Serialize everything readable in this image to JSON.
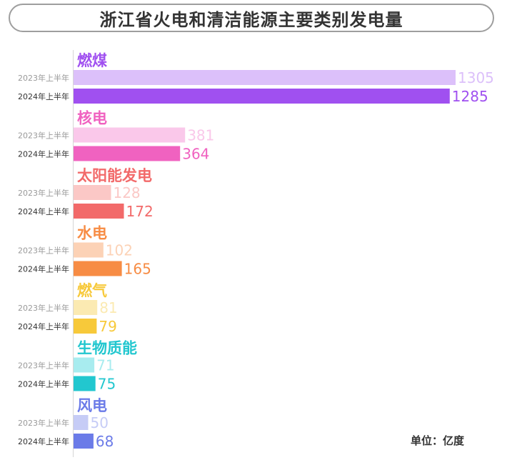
{
  "title": "浙江省火电和清洁能源主要类别发电量",
  "unit_label": "单位：亿度",
  "chart_data": {
    "type": "bar",
    "orientation": "horizontal",
    "title": "浙江省火电和清洁能源主要类别发电量",
    "unit": "亿度",
    "series_names": [
      "2023年上半年",
      "2024年上半年"
    ],
    "categories": [
      {
        "name": "燃煤",
        "color": "#a050f0",
        "light": "#dcc0fa",
        "values": [
          1305,
          1285
        ]
      },
      {
        "name": "核电",
        "color": "#f062c0",
        "light": "#fac8ea",
        "values": [
          381,
          364
        ]
      },
      {
        "name": "太阳能发电",
        "color": "#f26a6a",
        "light": "#fbc8c6",
        "values": [
          128,
          172
        ]
      },
      {
        "name": "水电",
        "color": "#f78c44",
        "light": "#fcd2b6",
        "values": [
          102,
          165
        ]
      },
      {
        "name": "燃气",
        "color": "#f7c93a",
        "light": "#fbeab2",
        "values": [
          81,
          79
        ]
      },
      {
        "name": "生物质能",
        "color": "#22c7cf",
        "light": "#a8ecef",
        "values": [
          71,
          75
        ]
      },
      {
        "name": "风电",
        "color": "#6b7be8",
        "light": "#c6ccf6",
        "values": [
          50,
          68
        ]
      }
    ]
  }
}
